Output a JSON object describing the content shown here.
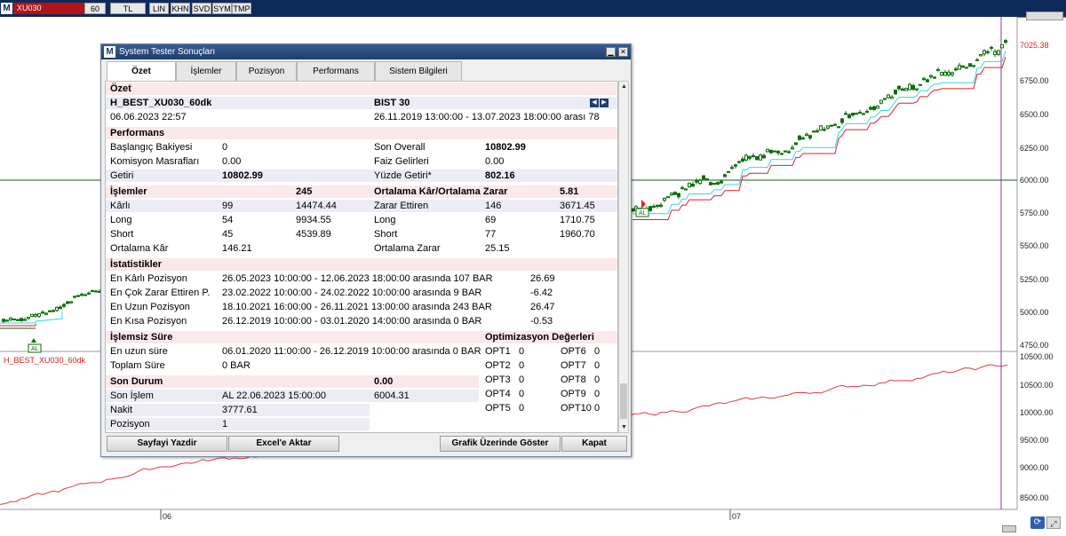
{
  "toolbar": {
    "logo": "M",
    "symbol": "XU030",
    "items": [
      "60",
      "TL",
      "LIN",
      "KHN",
      "SVD",
      "SYM",
      "TMP"
    ]
  },
  "chart": {
    "price_last": "7025.38",
    "price_ticks": [
      "6750.00",
      "6500.00",
      "6250.00",
      "6000.00",
      "5750.00",
      "5500.00",
      "5250.00",
      "5000.00",
      "4750.00"
    ],
    "equity_ticks": [
      "10500.00",
      "10000.00",
      "9500.00",
      "9000.00",
      "8500.00"
    ],
    "equity_label": "H_BEST_XU030_60dk",
    "date_labels": [
      "06",
      "07"
    ],
    "signal_label": "AL",
    "colors": {
      "candle": "#0b6e0b",
      "stop_red": "#e02020",
      "stop_cyan": "#30d8e8",
      "equity": "#e03c3c",
      "cursor": "#8a3aa0",
      "dark_line": "#1e5a1e"
    }
  },
  "dialog": {
    "logo": "M",
    "title": "System Tester Sonuçları",
    "tabs": [
      "Özet",
      "İşlemler",
      "Pozisyon",
      "Performans",
      "Sistem Bilgileri"
    ],
    "ozet": {
      "header": "Özet",
      "system_name": "H_BEST_XU030_60dk",
      "symbol_name": "BIST 30",
      "run_date": "06.06.2023 22:57",
      "date_range": "26.11.2019 13:00:00 - 13.07.2023 18:00:00 arası 78"
    },
    "performans": {
      "header": "Performans",
      "rows": [
        [
          "Başlangıç Bakiyesi",
          "0",
          "Son Overall",
          "10802.99"
        ],
        [
          "Komisyon Masrafları",
          "0.00",
          "Faiz Gelirleri",
          "0.00"
        ],
        [
          "Getiri",
          "10802.99",
          "Yüzde Getiri*",
          "802.16"
        ]
      ]
    },
    "islemler": {
      "header": "İşlemler",
      "count": "245",
      "right_header": "Ortalama Kâr/Ortalama Zarar",
      "ratio": "5.81",
      "rows": [
        [
          "Kârlı",
          "99",
          "14474.44",
          "Zarar Ettiren",
          "146",
          "3671.45"
        ],
        [
          "Long",
          "54",
          "9934.55",
          "Long",
          "69",
          "1710.75"
        ],
        [
          "Short",
          "45",
          "4539.89",
          "Short",
          "77",
          "1960.70"
        ],
        [
          "Ortalama Kâr",
          "146.21",
          "",
          "Ortalama Zarar",
          "25.15",
          ""
        ]
      ]
    },
    "istatistikler": {
      "header": "İstatistikler",
      "rows": [
        [
          "En Kârlı Pozisyon",
          "26.05.2023 10:00:00 - 12.06.2023 18:00:00 arasında 107 BAR",
          "26.69"
        ],
        [
          "En Çok Zarar Ettiren P.",
          "23.02.2022 10:00:00 - 24.02.2022 10:00:00 arasında 9 BAR",
          "-6.42"
        ],
        [
          "En Uzun Pozisyon",
          "18.10.2021 16:00:00 - 26.11.2021 13:00:00 arasında 243 BAR",
          "26.47"
        ],
        [
          "En Kısa Pozisyon",
          "26.12.2019 10:00:00 - 03.01.2020 14:00:00 arasında 0 BAR",
          "-0.53"
        ]
      ]
    },
    "islemsiz": {
      "header": "İşlemsiz Süre",
      "rows": [
        [
          "En uzun süre",
          "06.01.2020 11:00:00 - 26.12.2019 10:00:00 arasında 0 BAR"
        ],
        [
          "Toplam Süre",
          "0 BAR"
        ]
      ]
    },
    "optimizasyon": {
      "header": "Optimizasyon Değerleri",
      "rows": [
        [
          "OPT1",
          "0",
          "OPT6",
          "0"
        ],
        [
          "OPT2",
          "0",
          "OPT7",
          "0"
        ],
        [
          "OPT3",
          "0",
          "OPT8",
          "0"
        ],
        [
          "OPT4",
          "0",
          "OPT9",
          "0"
        ],
        [
          "OPT5",
          "0",
          "OPT10",
          "0"
        ]
      ]
    },
    "son_durum": {
      "header": "Son Durum",
      "header_value": "0.00",
      "son_islem_label": "Son İşlem",
      "son_islem_value": "AL  22.06.2023 15:00:00",
      "son_islem_price": "6004.31",
      "nakit_label": "Nakit",
      "nakit_value": "3777.61",
      "pozisyon_label": "Pozisyon",
      "pozisyon_value": "1"
    },
    "buttons": {
      "print": "Sayfayi Yazdir",
      "excel": "Excel'e Aktar",
      "show_on_chart": "Grafik Üzerinde Göster",
      "close": "Kapat"
    }
  }
}
